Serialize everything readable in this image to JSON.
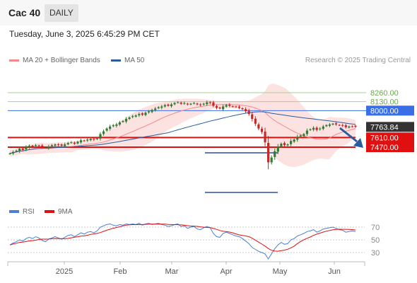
{
  "header": {
    "symbol": "Cac 40",
    "timeframe": "DAILY"
  },
  "timestamp": "Tuesday, June 3, 2025 6:45:29 PM CET",
  "legend": {
    "items": [
      {
        "label": "MA 20 + Bollinger Bands",
        "color": "#f28a8a"
      },
      {
        "label": "MA 50",
        "color": "#2a5c9e"
      }
    ],
    "credit": "Research © 2025 Trading Central"
  },
  "chart_data": [
    {
      "type": "candlestick",
      "x_tick_labels": [
        "2025",
        "Feb",
        "Mar",
        "Apr",
        "May",
        "Jun"
      ],
      "grid": false,
      "levels": [
        {
          "value": 8260.0,
          "label": "8260.00",
          "color": "#a6cf8e",
          "kind": "resistance"
        },
        {
          "value": 8130.0,
          "label": "8130.00",
          "color": "#a6cf8e",
          "kind": "resistance"
        },
        {
          "value": 8000.0,
          "label": "8000.00",
          "color": "#3a6ee8",
          "kind": "pivot"
        },
        {
          "value": 7610.0,
          "label": "7610.00",
          "color": "#e01010",
          "kind": "support"
        },
        {
          "value": 7470.0,
          "label": "7470.00",
          "color": "#e01010",
          "kind": "support"
        }
      ],
      "last_price": {
        "value": 7763.84,
        "label": "7763.84"
      },
      "series": [
        {
          "name": "MA 20 + Bollinger Bands",
          "color": "#f28a8a"
        },
        {
          "name": "MA 50",
          "color": "#2a5c9e"
        }
      ],
      "forecast": "down",
      "closes": [
        7380,
        7400,
        7420,
        7450,
        7430,
        7470,
        7490,
        7480,
        7500,
        7490,
        7470,
        7460,
        7480,
        7500,
        7510,
        7500,
        7490,
        7510,
        7530,
        7540,
        7520,
        7550,
        7570,
        7560,
        7580,
        7590,
        7580,
        7600,
        7660,
        7700,
        7740,
        7770,
        7790,
        7800,
        7830,
        7850,
        7880,
        7900,
        7920,
        7930,
        7950,
        7940,
        7970,
        7990,
        8010,
        8030,
        8050,
        8060,
        8080,
        8070,
        8090,
        8110,
        8120,
        8100,
        8110,
        8090,
        8100,
        8110,
        8090,
        8080,
        8100,
        8120,
        8110,
        8070,
        8040,
        8030,
        8060,
        8080,
        8070,
        8060,
        8050,
        8040,
        8020,
        7990,
        7950,
        7880,
        7810,
        7740,
        7690,
        7540,
        7250,
        7320,
        7410,
        7480,
        7520,
        7500,
        7510,
        7560,
        7580,
        7620,
        7640,
        7660,
        7710,
        7730,
        7750,
        7720,
        7740,
        7770,
        7790,
        7800,
        7810,
        7800,
        7790,
        7780,
        7760,
        7770,
        7770,
        7764
      ]
    },
    {
      "type": "line",
      "title": "RSI",
      "y_tick_labels": [
        "70",
        "50",
        "30"
      ],
      "levels": [
        70,
        50,
        30
      ],
      "series": [
        {
          "name": "RSI",
          "color": "#4a7fd6"
        },
        {
          "name": "9MA",
          "color": "#e01010"
        }
      ],
      "rsi_values": [
        42,
        45,
        47,
        50,
        48,
        52,
        54,
        52,
        55,
        53,
        49,
        47,
        51,
        53,
        55,
        53,
        51,
        54,
        57,
        58,
        55,
        58,
        61,
        59,
        62,
        63,
        61,
        64,
        70,
        72,
        74,
        75,
        73,
        72,
        74,
        73,
        75,
        74,
        75,
        74,
        76,
        73,
        75,
        76,
        74,
        75,
        76,
        74,
        73,
        71,
        72,
        74,
        75,
        71,
        72,
        68,
        70,
        71,
        67,
        66,
        69,
        71,
        69,
        60,
        55,
        54,
        60,
        62,
        60,
        58,
        56,
        55,
        52,
        48,
        44,
        38,
        35,
        32,
        30,
        28,
        20,
        28,
        36,
        42,
        46,
        43,
        44,
        50,
        52,
        56,
        58,
        60,
        63,
        64,
        66,
        62,
        64,
        67,
        68,
        69,
        70,
        68,
        66,
        65,
        62,
        63,
        64,
        63
      ]
    }
  ]
}
